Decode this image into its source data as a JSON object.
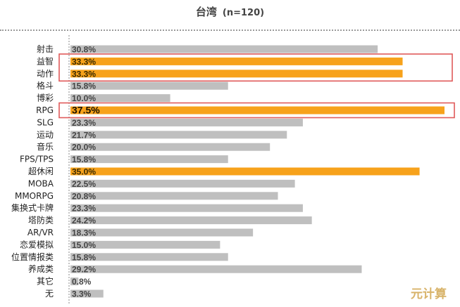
{
  "title": "台湾",
  "subtitle": "(n=120)",
  "watermark": "元计算",
  "colors": {
    "bar": "#bfbfbf",
    "highlight": "#f7a21b",
    "box": "#e05a5a",
    "axis": "#888888"
  },
  "chart_data": {
    "type": "bar",
    "orientation": "horizontal",
    "title": "台湾",
    "subtitle": "(n=120)",
    "categories": [
      "射击",
      "益智",
      "动作",
      "格斗",
      "博彩",
      "RPG",
      "SLG",
      "运动",
      "音乐",
      "FPS/TPS",
      "超休闲",
      "MOBA",
      "MMORPG",
      "集换式卡牌",
      "塔防类",
      "AR/VR",
      "恋爱模拟",
      "位置情报类",
      "养成类",
      "其它",
      "无"
    ],
    "values": [
      30.8,
      33.3,
      33.3,
      15.8,
      10.0,
      37.5,
      23.3,
      21.7,
      20.0,
      15.8,
      35.0,
      22.5,
      20.8,
      23.3,
      24.2,
      18.3,
      15.0,
      15.8,
      29.2,
      0.8,
      3.3
    ],
    "labels": [
      "30.8%",
      "33.3%",
      "33.3%",
      "15.8%",
      "10.0%",
      "37.5%",
      "23.3%",
      "21.7%",
      "20.0%",
      "15.8%",
      "35.0%",
      "22.5%",
      "20.8%",
      "23.3%",
      "24.2%",
      "18.3%",
      "15.0%",
      "15.8%",
      "29.2%",
      "0.8%",
      "3.3%"
    ],
    "highlighted": [
      "益智",
      "动作",
      "RPG",
      "超休闲"
    ],
    "boxed_groups": [
      [
        "益智",
        "动作"
      ],
      [
        "RPG"
      ]
    ],
    "xlim": [
      0,
      40
    ],
    "grid": false,
    "legend": "none"
  }
}
